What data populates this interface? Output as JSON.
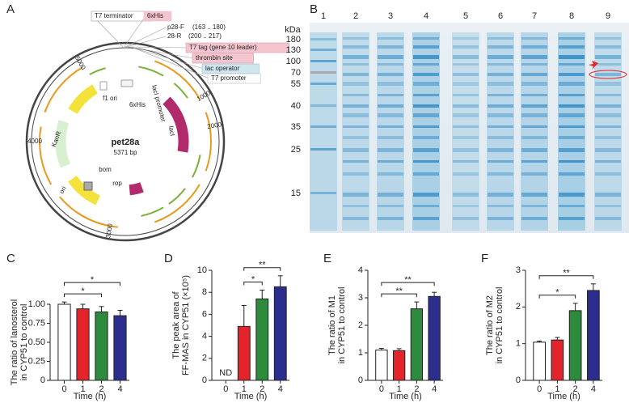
{
  "panels": [
    "A",
    "B"
  ],
  "plasmid": {
    "name": "pet28a",
    "size": "5371 bp",
    "position_ticks": [
      "1000",
      "2000",
      "3000",
      "4000",
      "5000"
    ],
    "features": [
      "f1 ori",
      "6xHis",
      "KanR",
      "ori",
      "bom",
      "rop",
      "lacI",
      "lacI promoter"
    ],
    "callouts": [
      {
        "label": "T7 terminator"
      },
      {
        "label": "6xHis"
      },
      {
        "label": "p28-F",
        "detail": "(163 .. 180)"
      },
      {
        "label": "28-R",
        "detail": "(200 .. 217)"
      },
      {
        "label": "T7 tag (gene 10 leader)"
      },
      {
        "label": "thrombin site"
      },
      {
        "label": "lac operator"
      },
      {
        "label": "T7 promoter"
      }
    ]
  },
  "gel": {
    "unit": "kDa",
    "markers": [
      "180",
      "130",
      "100",
      "70",
      "55",
      "40",
      "35",
      "25",
      "15"
    ],
    "lanes": [
      "1",
      "2",
      "3",
      "4",
      "5",
      "6",
      "7",
      "8",
      "9"
    ]
  },
  "chart_data": [
    {
      "type": "bar",
      "panel": "C",
      "y_label": [
        "The ratio of lanosterol",
        "in CYP51 to control"
      ],
      "x_label": "Time (h)",
      "categories": [
        "0",
        "1",
        "2",
        "4"
      ],
      "values": [
        1.0,
        0.94,
        0.9,
        0.85
      ],
      "errors": [
        0.03,
        0.06,
        0.07,
        0.07
      ],
      "colors": [
        "#ffffff",
        "#e3242b",
        "#2e8b3e",
        "#2b2e8c"
      ],
      "ylim": [
        0,
        1
      ],
      "yticks": [
        0,
        0.25,
        {
          "value": 0.5,
          "label": "0.50"
        },
        0.75,
        {
          "value": 1,
          "label": "1.00"
        }
      ],
      "annotations": [
        {
          "from": "0",
          "to": "2",
          "text": "*"
        },
        {
          "from": "0",
          "to": "4",
          "text": "*"
        }
      ]
    },
    {
      "type": "bar",
      "panel": "D",
      "y_label": [
        "The peak area of",
        "FF-MAS in CYP51 (×10⁵)"
      ],
      "x_label": "Time (h)",
      "categories": [
        "0",
        "1",
        "2",
        "4"
      ],
      "values": [
        null,
        4.9,
        7.4,
        8.5
      ],
      "value_labels": [
        "ND",
        null,
        null,
        null
      ],
      "errors": [
        null,
        1.9,
        0.8,
        1.0
      ],
      "colors": [
        "#ffffff",
        "#e3242b",
        "#2e8b3e",
        "#2b2e8c"
      ],
      "ylim": [
        0,
        10
      ],
      "yticks": [
        0,
        2,
        4,
        6,
        8,
        10
      ],
      "annotations": [
        {
          "from": "1",
          "to": "2",
          "text": "*"
        },
        {
          "from": "1",
          "to": "4",
          "text": "**"
        }
      ]
    },
    {
      "type": "bar",
      "panel": "E",
      "y_label": [
        "The ratio of M1",
        "in CYP51 to control"
      ],
      "x_label": "Time (h)",
      "categories": [
        "0",
        "1",
        "2",
        "4"
      ],
      "values": [
        1.1,
        1.08,
        2.6,
        3.05
      ],
      "errors": [
        0.06,
        0.07,
        0.25,
        0.15
      ],
      "colors": [
        "#ffffff",
        "#e3242b",
        "#2e8b3e",
        "#2b2e8c"
      ],
      "ylim": [
        0,
        4
      ],
      "yticks": [
        0,
        1,
        2,
        3,
        4
      ],
      "annotations": [
        {
          "from": "0",
          "to": "2",
          "text": "**"
        },
        {
          "from": "0",
          "to": "4",
          "text": "**"
        }
      ]
    },
    {
      "type": "bar",
      "panel": "F",
      "y_label": [
        "The ratio of M2",
        "in CYP51 to control"
      ],
      "x_label": "Time (h)",
      "categories": [
        "0",
        "1",
        "2",
        "4"
      ],
      "values": [
        1.04,
        1.1,
        1.9,
        2.45
      ],
      "errors": [
        0.03,
        0.07,
        0.2,
        0.18
      ],
      "colors": [
        "#ffffff",
        "#e3242b",
        "#2e8b3e",
        "#2b2e8c"
      ],
      "ylim": [
        0,
        3
      ],
      "yticks": [
        0,
        1,
        2,
        3
      ],
      "annotations": [
        {
          "from": "0",
          "to": "2",
          "text": "*"
        },
        {
          "from": "0",
          "to": "4",
          "text": "**"
        }
      ]
    }
  ]
}
